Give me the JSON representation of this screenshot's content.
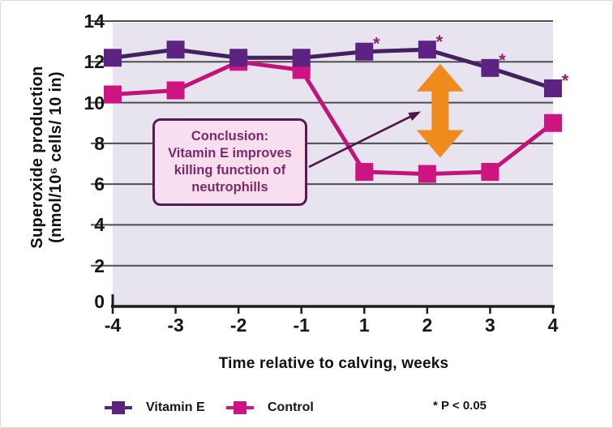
{
  "figure": {
    "x_axis_title": "Time relative to calving, weeks",
    "y_axis_title_line1": "Superoxide production",
    "y_axis_title_line2": "(nmol/10⁶ cells/ 10 in)",
    "p_note": "* P < 0.05"
  },
  "legend": {
    "items": [
      {
        "label": "Vitamin E"
      },
      {
        "label": "Control"
      }
    ]
  },
  "annotation_box": {
    "lines": [
      "Conclusion:",
      "Vitamin E improves",
      "killing function of",
      "neutrophills"
    ]
  },
  "colors": {
    "vitamin_e_marker": "#5c2383",
    "vitamin_e_line": "#44205f",
    "control_marker": "#cd1480",
    "control_line": "#c31377",
    "arrow_orange": "#ef8a1c",
    "plot_bg": "#e7e3ef",
    "gridline": "#4d4d4d",
    "axis": "#1c1c1c",
    "box_fill": "#f8dff0",
    "box_border": "#5c1a55",
    "box_text": "#7d2b67",
    "asterisk": "#8c2468",
    "annotation_arrow": "#4f1747"
  },
  "chart_data": {
    "type": "line",
    "title": "",
    "xlabel": "Time relative to calving, weeks",
    "ylabel": "Superoxide production (nmol/10⁶ cells/ 10 in)",
    "categories": [
      -4,
      -3,
      -2,
      -1,
      1,
      2,
      3,
      4
    ],
    "series": [
      {
        "name": "Vitamin E",
        "values": [
          12.2,
          12.6,
          12.2,
          12.2,
          12.5,
          12.6,
          11.7,
          10.7
        ],
        "color": "#5c2383",
        "line_color": "#44205f",
        "significant": [
          false,
          false,
          false,
          false,
          true,
          true,
          true,
          true
        ]
      },
      {
        "name": "Control",
        "values": [
          10.4,
          10.6,
          12.0,
          11.6,
          6.6,
          6.5,
          6.6,
          9.0
        ],
        "color": "#cd1480",
        "line_color": "#c31377",
        "significant": [
          false,
          false,
          false,
          false,
          false,
          false,
          false,
          false
        ]
      }
    ],
    "y_ticks": [
      0,
      2,
      4,
      6,
      8,
      10,
      12,
      14
    ],
    "ylim": [
      0,
      14
    ],
    "grid": "horizontal",
    "legend_position": "bottom",
    "significance_note": "* P < 0.05",
    "difference_arrow": {
      "category": 2,
      "top_value": 11.9,
      "bottom_value": 7.3
    }
  }
}
